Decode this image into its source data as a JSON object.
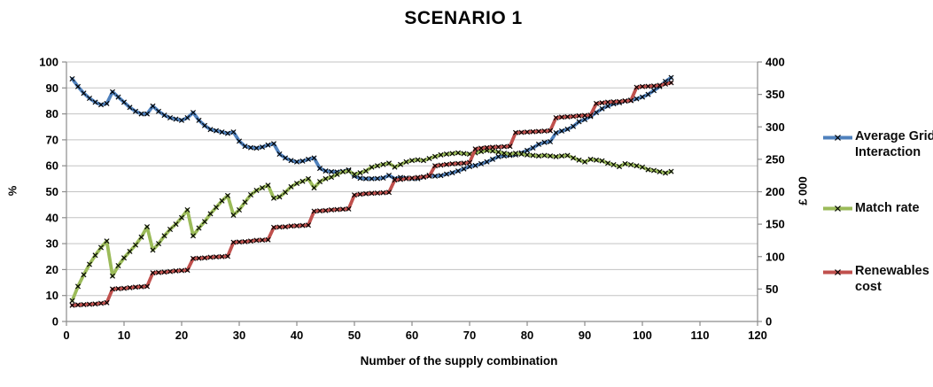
{
  "chart_data": {
    "type": "line",
    "title": "SCENARIO 1",
    "xlabel": "Number of the supply combination",
    "ylabel_left": "%",
    "ylabel_right": "£ 000",
    "xlim": [
      0,
      120
    ],
    "ylim_left": [
      0,
      100
    ],
    "ylim_right": [
      0,
      400
    ],
    "xticks": [
      0,
      10,
      20,
      30,
      40,
      50,
      60,
      70,
      80,
      90,
      100,
      110,
      120
    ],
    "yticks_left": [
      0,
      10,
      20,
      30,
      40,
      50,
      60,
      70,
      80,
      90,
      100
    ],
    "yticks_right": [
      0,
      50,
      100,
      150,
      200,
      250,
      300,
      350,
      400
    ],
    "grid": "horizontal",
    "legend_position": "right",
    "marker": "x",
    "colors": {
      "grid": "#C3C3C3",
      "axis": "#8C8C8C",
      "marker": "#000000"
    },
    "x": [
      1,
      2,
      3,
      4,
      5,
      6,
      7,
      8,
      9,
      10,
      11,
      12,
      13,
      14,
      15,
      16,
      17,
      18,
      19,
      20,
      21,
      22,
      23,
      24,
      25,
      26,
      27,
      28,
      29,
      30,
      31,
      32,
      33,
      34,
      35,
      36,
      37,
      38,
      39,
      40,
      41,
      42,
      43,
      44,
      45,
      46,
      47,
      48,
      49,
      50,
      51,
      52,
      53,
      54,
      55,
      56,
      57,
      58,
      59,
      60,
      61,
      62,
      63,
      64,
      65,
      66,
      67,
      68,
      69,
      70,
      71,
      72,
      73,
      74,
      75,
      76,
      77,
      78,
      79,
      80,
      81,
      82,
      83,
      84,
      85,
      86,
      87,
      88,
      89,
      90,
      91,
      92,
      93,
      94,
      95,
      96,
      97,
      98,
      99,
      100,
      101,
      102,
      103,
      104,
      105
    ],
    "series": [
      {
        "name": "Average Grid Interaction",
        "axis": "left",
        "color": "#4F81BD",
        "values": [
          93.5,
          90.5,
          88,
          86,
          84.5,
          83.5,
          84,
          88.5,
          86.5,
          84.5,
          82.5,
          81,
          80,
          80,
          83,
          81,
          79.5,
          78.5,
          78,
          77.5,
          78.5,
          80.5,
          77.5,
          75.5,
          74,
          73.5,
          73,
          72.5,
          73,
          69.5,
          67.5,
          67,
          66.8,
          67.2,
          68,
          68.5,
          64.5,
          63,
          62,
          61.5,
          61.8,
          62.5,
          63,
          59,
          58,
          57.7,
          57.6,
          57.8,
          58.4,
          56,
          55.2,
          55,
          55,
          55.1,
          55.3,
          56.3,
          55,
          55.5,
          55.3,
          55,
          55,
          55.6,
          56.3,
          56,
          56.2,
          56.8,
          57.3,
          58,
          58.8,
          59.7,
          60.1,
          60.8,
          61.5,
          62.5,
          63.5,
          63.8,
          64,
          64.2,
          65,
          65.9,
          66.9,
          68.3,
          69,
          69.3,
          72.7,
          73.4,
          74.1,
          75.2,
          77,
          77.8,
          79,
          80.5,
          82,
          83,
          83.9,
          84.3,
          84.9,
          85.3,
          85.8,
          86.5,
          87.5,
          89,
          90.5,
          92.5,
          94
        ]
      },
      {
        "name": "Match rate",
        "axis": "left",
        "color": "#9BBB59",
        "values": [
          8,
          13.5,
          18,
          22,
          25.5,
          28.5,
          31,
          17.5,
          21.5,
          24.5,
          27,
          29.5,
          32.5,
          36.5,
          27.5,
          30,
          33,
          35.5,
          37.5,
          40,
          43,
          33,
          36,
          38.5,
          41.5,
          44,
          46.5,
          48.5,
          41,
          43,
          46,
          48.8,
          50.5,
          51.5,
          52.5,
          47.5,
          48,
          49.8,
          51.9,
          53.2,
          54,
          55,
          51.5,
          53.9,
          55,
          55.6,
          56.7,
          57.7,
          58,
          56.7,
          57.3,
          58,
          59.5,
          60,
          60.5,
          61,
          59.5,
          60.5,
          61.5,
          62,
          62.3,
          62,
          62.8,
          63.6,
          64.2,
          64.5,
          64.7,
          65,
          64.7,
          64.5,
          65,
          65.5,
          65.9,
          65.7,
          65.3,
          64.8,
          64.5,
          64.8,
          64.5,
          64.2,
          64,
          63.8,
          64,
          63.8,
          63.5,
          63.8,
          64,
          63,
          62.2,
          61.5,
          62.5,
          62.2,
          61.9,
          61,
          60.4,
          59.7,
          60.8,
          60.4,
          60,
          59.5,
          58.5,
          58.2,
          57.7,
          57.2,
          57.8
        ]
      },
      {
        "name": "Renewables cost",
        "axis": "right",
        "color": "#C0504D",
        "values": [
          25,
          25.5,
          26,
          26.5,
          27,
          28,
          29,
          50,
          50.5,
          51,
          52,
          53,
          53.5,
          54,
          75,
          75.5,
          76,
          77,
          78,
          78.5,
          79,
          97,
          97.5,
          98,
          99,
          99.5,
          100,
          100.5,
          122,
          122.5,
          123,
          124,
          125,
          125.5,
          126,
          145,
          145.5,
          146,
          147,
          147.5,
          148,
          148.5,
          170,
          170.5,
          171,
          172,
          172.5,
          173,
          173.5,
          195,
          196,
          197,
          197.5,
          198,
          198.5,
          199,
          218,
          219,
          220,
          221,
          222,
          223,
          224,
          240,
          241,
          242,
          243,
          243.5,
          244,
          245,
          266,
          267,
          268,
          268.5,
          269,
          269.5,
          270,
          291,
          291.5,
          292,
          292.5,
          293,
          293.5,
          294,
          314,
          315,
          315.5,
          316,
          317,
          317.5,
          318,
          336,
          337,
          338,
          338.5,
          339,
          340,
          340.5,
          361,
          362,
          362.5,
          363,
          364,
          366,
          368
        ]
      }
    ]
  }
}
